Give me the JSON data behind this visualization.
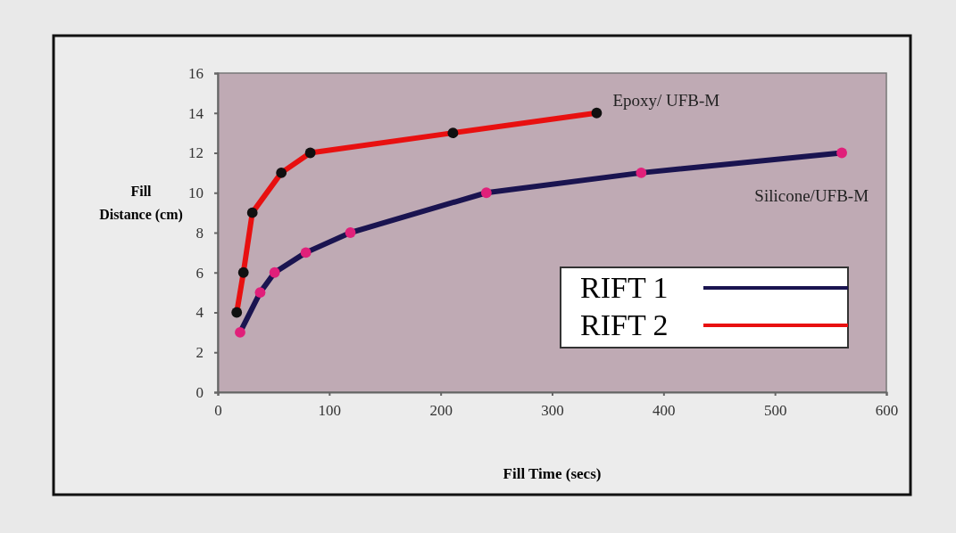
{
  "chart_data": {
    "type": "line",
    "xlabel": "Fill Time (secs)",
    "ylabel": "Fill Distance (cm)",
    "xlim": [
      0,
      600
    ],
    "xticks": [
      0,
      100,
      200,
      300,
      400,
      500,
      600
    ],
    "ylim": [
      0,
      16
    ],
    "yticks": [
      0,
      2,
      4,
      6,
      8,
      10,
      12,
      14,
      16
    ],
    "grid": false,
    "legend": "bottom right",
    "marker": "circle",
    "line_style": "solid",
    "series": [
      {
        "name": "RIFT 1",
        "color": "#1a1450",
        "x": [
          20,
          38,
          51,
          79,
          119,
          241,
          380,
          560
        ],
        "values": [
          3,
          5,
          6,
          7,
          8,
          10,
          11,
          12
        ],
        "colors": [
          "#e0207a",
          "#e0207a",
          "#e0207a",
          "#e0207a",
          "#e0207a",
          "#e0207a",
          "#e0207a",
          "#e0207a"
        ]
      },
      {
        "name": "RIFT 2",
        "color": "#e81010",
        "x": [
          17,
          23,
          31,
          57,
          83,
          211,
          340
        ],
        "values": [
          4,
          6,
          9,
          11,
          12,
          13,
          14
        ],
        "colors": [
          "#101010",
          "#101010",
          "#101010",
          "#101010",
          "#101010",
          "#101010",
          "#101010"
        ]
      }
    ],
    "annotations": [
      {
        "text": "Epoxy/ UFB-M",
        "x": 340,
        "y": 14
      },
      {
        "text": "Silicone/UFB-M",
        "x": 560,
        "y": 12
      }
    ]
  }
}
